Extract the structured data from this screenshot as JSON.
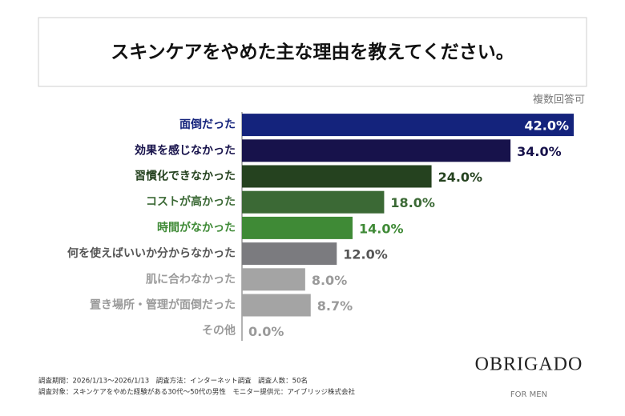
{
  "chart_data": {
    "type": "bar",
    "orientation": "horizontal",
    "title": "スキンケアをやめた主な理由を教えてください。",
    "note": "複数回答可",
    "categories": [
      "面倒だった",
      "効果を感じなかった",
      "習慣化できなかった",
      "コストが高かった",
      "時間がなかった",
      "何を使えばいいか分からなかった",
      "肌に合わなかった",
      "置き場所・管理が面倒だった",
      "その他"
    ],
    "values": [
      42,
      34,
      24,
      18,
      14,
      12,
      8,
      8.7,
      0
    ],
    "value_labels": [
      "42.0%",
      "34.0%",
      "24.0%",
      "18.0%",
      "14.0%",
      "12.0%",
      "8.0%",
      "8.7%",
      "0.0%"
    ],
    "colors": [
      "#14237c",
      "#17124b",
      "#25421f",
      "#3b6935",
      "#3f8a36",
      "#7b7b7f",
      "#a4a4a4",
      "#a4a4a4",
      "#a4a4a4"
    ],
    "label_colors": [
      "#14237c",
      "#17124b",
      "#25421f",
      "#3b6935",
      "#3f8a36",
      "#555555",
      "#9a9a9a",
      "#9a9a9a",
      "#9a9a9a"
    ]
  },
  "footnotes": [
    "調査期間：2026/1/13～2026/1/13　調査方法：インターネット調査　調査人数：50名",
    "調査対象：スキンケアをやめた経験がある30代～50代の男性　モニター提供元：アイブリッジ株式会社"
  ],
  "logo": {
    "name": "OBRIGADO",
    "sub": "FOR MEN"
  }
}
